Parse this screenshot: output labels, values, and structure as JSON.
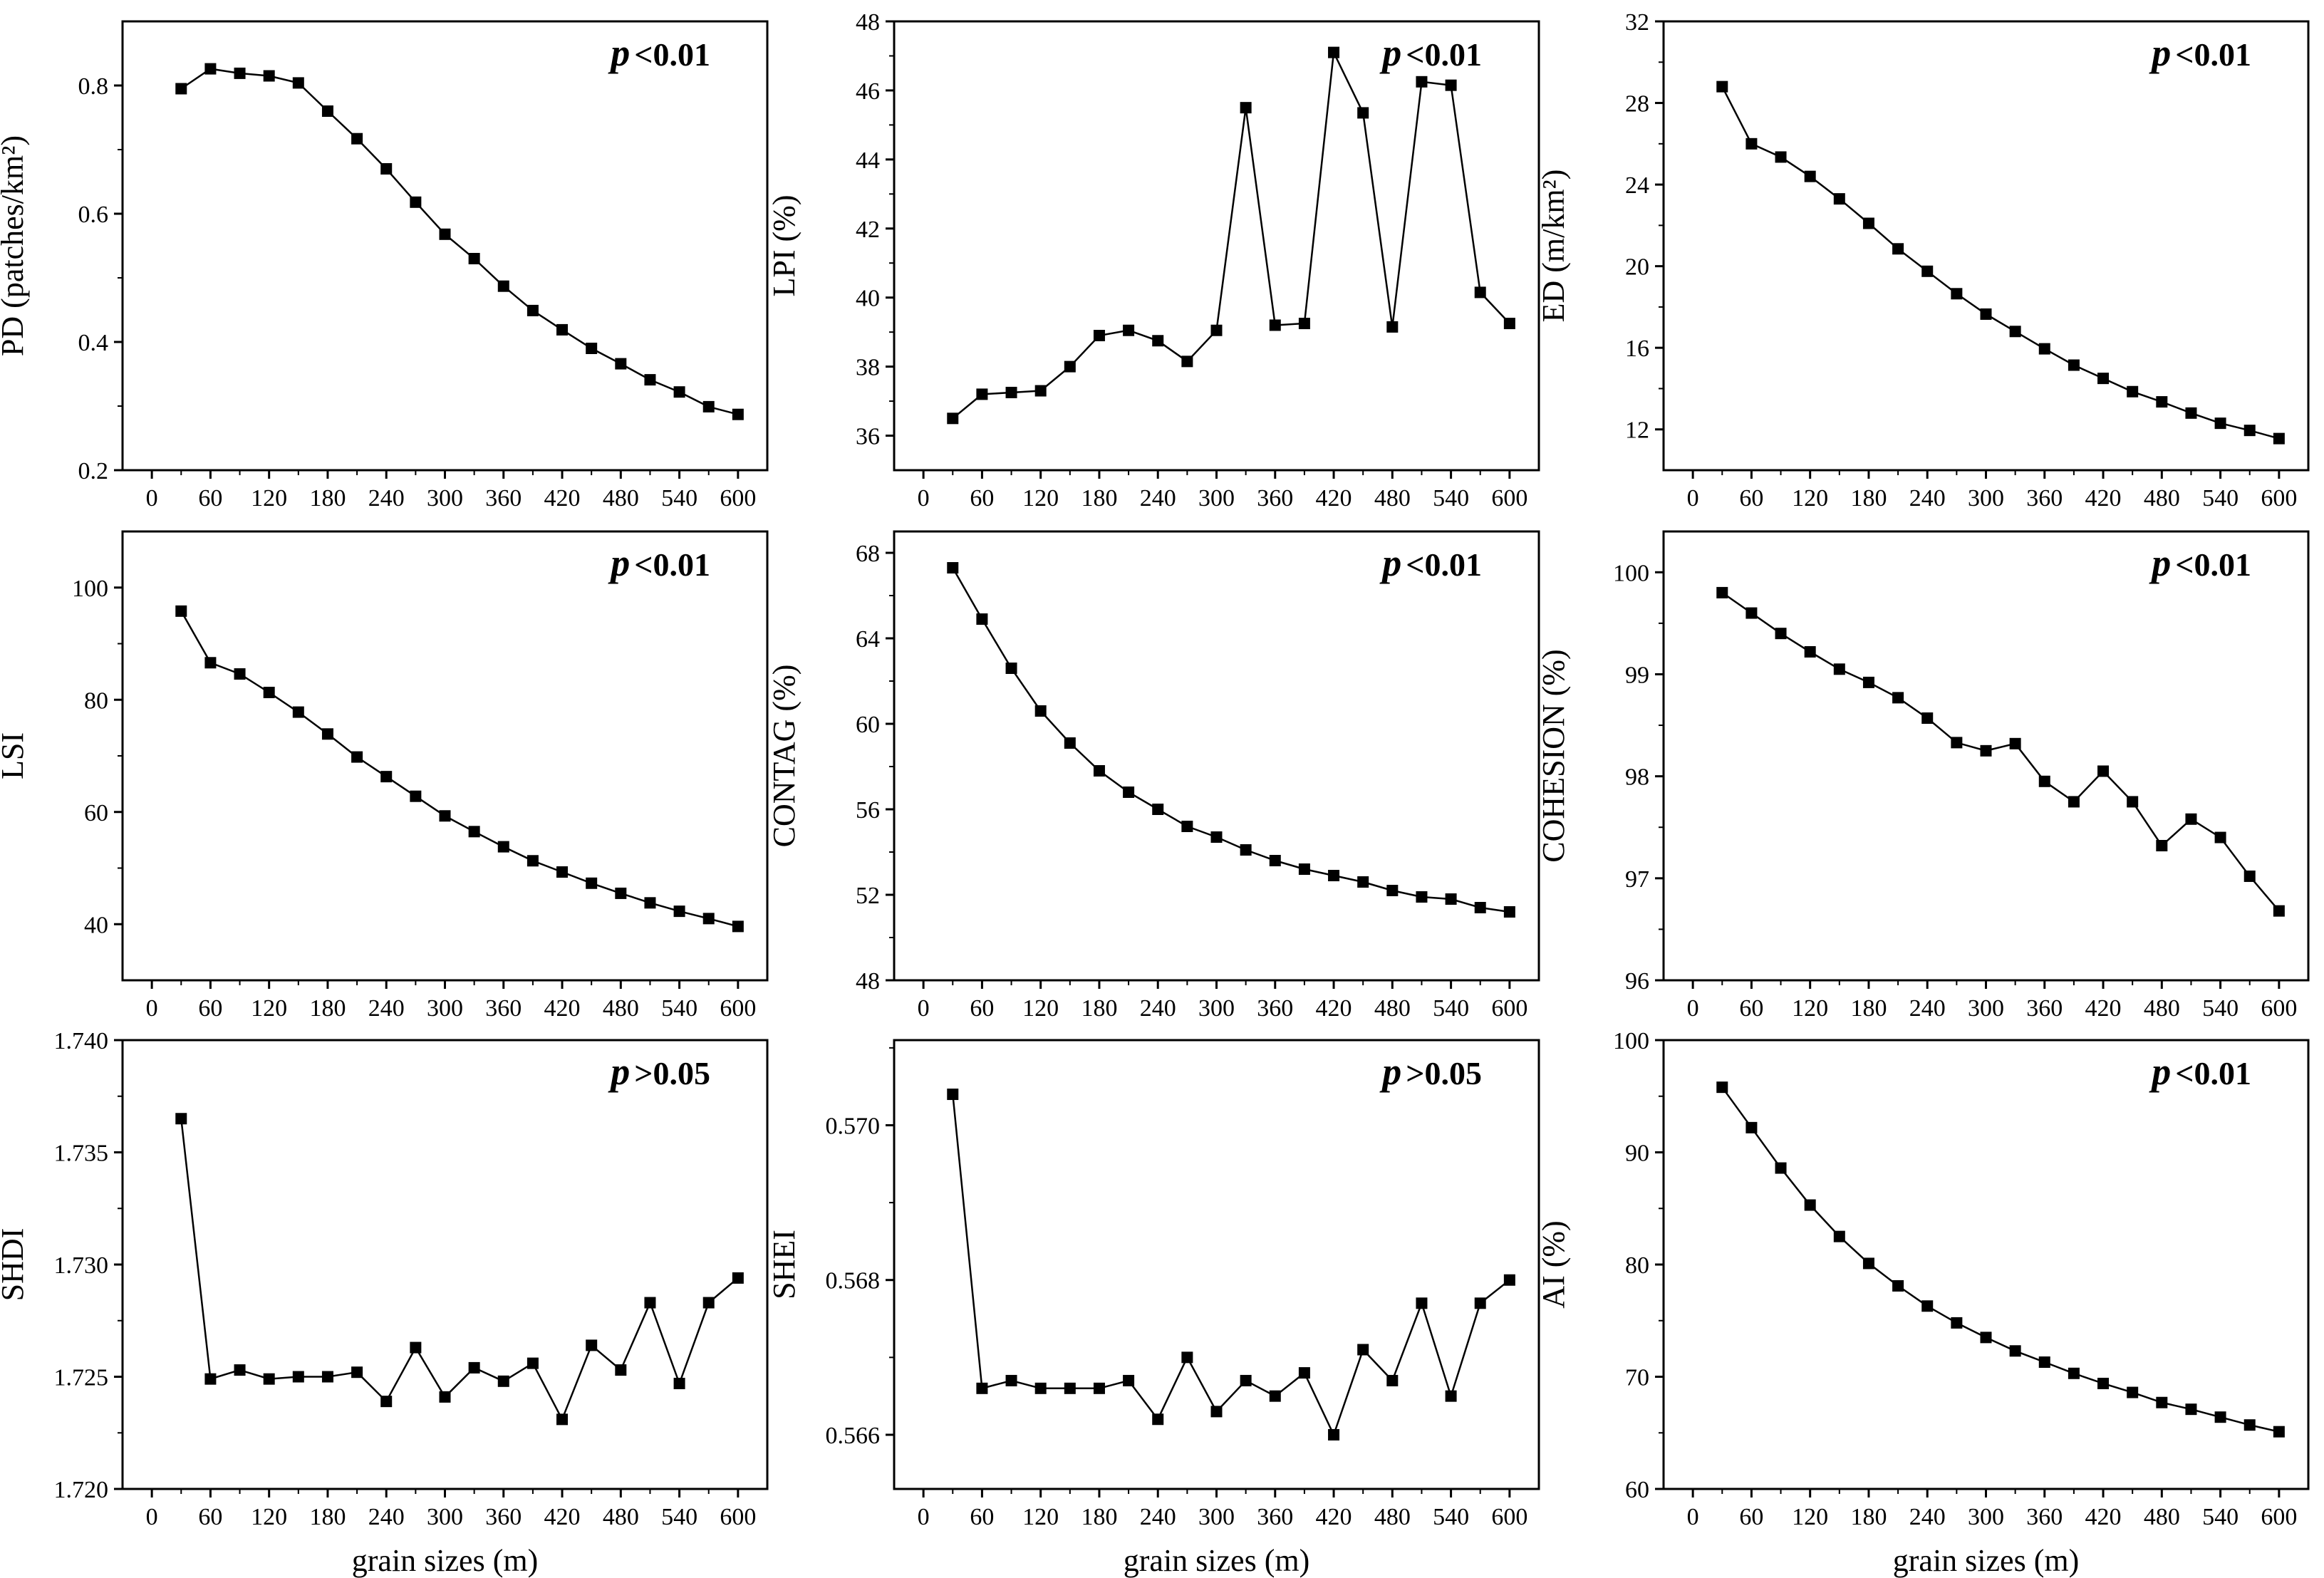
{
  "figure": {
    "xlabel": "grain sizes (m)"
  },
  "chart_data": [
    {
      "type": "line",
      "ylabel": "PD (patches/km²)",
      "annotation": "p<0.01",
      "xlim": [
        -30,
        630
      ],
      "xticks": [
        0,
        60,
        120,
        180,
        240,
        300,
        360,
        420,
        480,
        540,
        600
      ],
      "ylim": [
        0.2,
        0.9
      ],
      "yticks": [
        0.2,
        0.4,
        0.6,
        0.8
      ],
      "ytick_labels": [
        "0.2",
        "0.4",
        "0.6",
        "0.8"
      ],
      "series": [
        {
          "x": [
            30,
            60,
            90,
            120,
            150,
            180,
            210,
            240,
            270,
            300,
            330,
            360,
            390,
            420,
            450,
            480,
            510,
            540,
            570,
            600
          ],
          "y": [
            0.795,
            0.826,
            0.819,
            0.815,
            0.804,
            0.76,
            0.717,
            0.67,
            0.618,
            0.568,
            0.53,
            0.487,
            0.449,
            0.419,
            0.39,
            0.366,
            0.341,
            0.322,
            0.299,
            0.287
          ]
        }
      ]
    },
    {
      "type": "line",
      "ylabel": "LPI (%)",
      "annotation": "p<0.01",
      "xlim": [
        -30,
        630
      ],
      "xticks": [
        0,
        60,
        120,
        180,
        240,
        300,
        360,
        420,
        480,
        540,
        600
      ],
      "ylim": [
        35,
        48
      ],
      "yticks": [
        36,
        38,
        40,
        42,
        44,
        46,
        48
      ],
      "ytick_labels": [
        "36",
        "38",
        "40",
        "42",
        "44",
        "46",
        "48"
      ],
      "series": [
        {
          "x": [
            30,
            60,
            90,
            120,
            150,
            180,
            210,
            240,
            270,
            300,
            330,
            360,
            390,
            420,
            450,
            480,
            510,
            540,
            570,
            600
          ],
          "y": [
            36.5,
            37.2,
            37.25,
            37.3,
            38.0,
            38.9,
            39.05,
            38.75,
            38.15,
            39.05,
            45.5,
            39.2,
            39.25,
            47.1,
            45.35,
            39.15,
            46.25,
            46.15,
            40.15,
            39.25
          ]
        }
      ]
    },
    {
      "type": "line",
      "ylabel": "ED (m/km²)",
      "annotation": "p<0.01",
      "xlim": [
        -30,
        630
      ],
      "xticks": [
        0,
        60,
        120,
        180,
        240,
        300,
        360,
        420,
        480,
        540,
        600
      ],
      "ylim": [
        10,
        32
      ],
      "yticks": [
        12,
        16,
        20,
        24,
        28,
        32
      ],
      "ytick_labels": [
        "12",
        "16",
        "20",
        "24",
        "28",
        "32"
      ],
      "series": [
        {
          "x": [
            30,
            60,
            90,
            120,
            150,
            180,
            210,
            240,
            270,
            300,
            330,
            360,
            390,
            420,
            450,
            480,
            510,
            540,
            570,
            600
          ],
          "y": [
            28.8,
            26.0,
            25.35,
            24.4,
            23.3,
            22.1,
            20.85,
            19.75,
            18.65,
            17.65,
            16.8,
            15.95,
            15.15,
            14.5,
            13.85,
            13.35,
            12.8,
            12.3,
            11.95,
            11.55
          ]
        }
      ]
    },
    {
      "type": "line",
      "ylabel": "LSI",
      "annotation": "p<0.01",
      "xlim": [
        -30,
        630
      ],
      "xticks": [
        0,
        60,
        120,
        180,
        240,
        300,
        360,
        420,
        480,
        540,
        600
      ],
      "ylim": [
        30,
        110
      ],
      "yticks": [
        40,
        60,
        80,
        100
      ],
      "ytick_labels": [
        "40",
        "60",
        "80",
        "100"
      ],
      "series": [
        {
          "x": [
            30,
            60,
            90,
            120,
            150,
            180,
            210,
            240,
            270,
            300,
            330,
            360,
            390,
            420,
            450,
            480,
            510,
            540,
            570,
            600
          ],
          "y": [
            95.8,
            86.6,
            84.6,
            81.3,
            77.8,
            73.9,
            69.8,
            66.3,
            62.8,
            59.3,
            56.5,
            53.8,
            51.3,
            49.3,
            47.3,
            45.5,
            43.8,
            42.3,
            41.0,
            39.6
          ]
        }
      ]
    },
    {
      "type": "line",
      "ylabel": "CONTAG (%)",
      "annotation": "p<0.01",
      "xlim": [
        -30,
        630
      ],
      "xticks": [
        0,
        60,
        120,
        180,
        240,
        300,
        360,
        420,
        480,
        540,
        600
      ],
      "ylim": [
        48,
        69
      ],
      "yticks": [
        48,
        52,
        56,
        60,
        64,
        68
      ],
      "ytick_labels": [
        "48",
        "52",
        "56",
        "60",
        "64",
        "68"
      ],
      "series": [
        {
          "x": [
            30,
            60,
            90,
            120,
            150,
            180,
            210,
            240,
            270,
            300,
            330,
            360,
            390,
            420,
            450,
            480,
            510,
            540,
            570,
            600
          ],
          "y": [
            67.3,
            64.9,
            62.6,
            60.6,
            59.1,
            57.8,
            56.8,
            56.0,
            55.2,
            54.7,
            54.1,
            53.6,
            53.2,
            52.9,
            52.6,
            52.2,
            51.9,
            51.8,
            51.4,
            51.2
          ]
        }
      ]
    },
    {
      "type": "line",
      "ylabel": "COHESION (%)",
      "annotation": "p<0.01",
      "xlim": [
        -30,
        630
      ],
      "xticks": [
        0,
        60,
        120,
        180,
        240,
        300,
        360,
        420,
        480,
        540,
        600
      ],
      "ylim": [
        96,
        100.4
      ],
      "yticks": [
        96,
        97,
        98,
        99,
        100
      ],
      "ytick_labels": [
        "96",
        "97",
        "98",
        "99",
        "100"
      ],
      "series": [
        {
          "x": [
            30,
            60,
            90,
            120,
            150,
            180,
            210,
            240,
            270,
            300,
            330,
            360,
            390,
            420,
            450,
            480,
            510,
            540,
            570,
            600
          ],
          "y": [
            99.8,
            99.6,
            99.4,
            99.22,
            99.05,
            98.92,
            98.77,
            98.57,
            98.33,
            98.25,
            98.32,
            97.95,
            97.75,
            98.05,
            97.75,
            97.32,
            97.58,
            97.4,
            97.02,
            96.68
          ]
        }
      ]
    },
    {
      "type": "line",
      "ylabel": "SHDI",
      "annotation": "p>0.05",
      "xlim": [
        -30,
        630
      ],
      "xticks": [
        0,
        60,
        120,
        180,
        240,
        300,
        360,
        420,
        480,
        540,
        600
      ],
      "ylim": [
        1.72,
        1.74
      ],
      "yticks": [
        1.72,
        1.725,
        1.73,
        1.735,
        1.74
      ],
      "ytick_labels": [
        "1.720",
        "1.725",
        "1.730",
        "1.735",
        "1.740"
      ],
      "series": [
        {
          "x": [
            30,
            60,
            90,
            120,
            150,
            180,
            210,
            240,
            270,
            300,
            330,
            360,
            390,
            420,
            450,
            480,
            510,
            540,
            570,
            600
          ],
          "y": [
            1.7365,
            1.7249,
            1.7253,
            1.7249,
            1.725,
            1.725,
            1.7252,
            1.7239,
            1.7263,
            1.7241,
            1.7254,
            1.7248,
            1.7256,
            1.7231,
            1.7264,
            1.7253,
            1.7283,
            1.7247,
            1.7283,
            1.7294
          ]
        }
      ]
    },
    {
      "type": "line",
      "ylabel": "SHEI",
      "annotation": "p>0.05",
      "xlim": [
        -30,
        630
      ],
      "xticks": [
        0,
        60,
        120,
        180,
        240,
        300,
        360,
        420,
        480,
        540,
        600
      ],
      "ylim": [
        0.5653,
        0.5711
      ],
      "yticks": [
        0.566,
        0.568,
        0.57
      ],
      "ytick_labels": [
        "0.566",
        "0.568",
        "0.570"
      ],
      "series": [
        {
          "x": [
            30,
            60,
            90,
            120,
            150,
            180,
            210,
            240,
            270,
            300,
            330,
            360,
            390,
            420,
            450,
            480,
            510,
            540,
            570,
            600
          ],
          "y": [
            0.5704,
            0.5666,
            0.5667,
            0.5666,
            0.5666,
            0.5666,
            0.5667,
            0.5662,
            0.567,
            0.5663,
            0.5667,
            0.5665,
            0.5668,
            0.566,
            0.5671,
            0.5667,
            0.5677,
            0.5665,
            0.5677,
            0.568
          ]
        }
      ]
    },
    {
      "type": "line",
      "ylabel": "AI (%)",
      "annotation": "p<0.01",
      "xlim": [
        -30,
        630
      ],
      "xticks": [
        0,
        60,
        120,
        180,
        240,
        300,
        360,
        420,
        480,
        540,
        600
      ],
      "ylim": [
        60,
        100
      ],
      "yticks": [
        60,
        70,
        80,
        90,
        100
      ],
      "ytick_labels": [
        "60",
        "70",
        "80",
        "90",
        "100"
      ],
      "series": [
        {
          "x": [
            30,
            60,
            90,
            120,
            150,
            180,
            210,
            240,
            270,
            300,
            330,
            360,
            390,
            420,
            450,
            480,
            510,
            540,
            570,
            600
          ],
          "y": [
            95.8,
            92.2,
            88.6,
            85.3,
            82.5,
            80.1,
            78.1,
            76.3,
            74.8,
            73.5,
            72.3,
            71.3,
            70.3,
            69.4,
            68.6,
            67.7,
            67.1,
            66.4,
            65.7,
            65.1
          ]
        }
      ]
    }
  ]
}
